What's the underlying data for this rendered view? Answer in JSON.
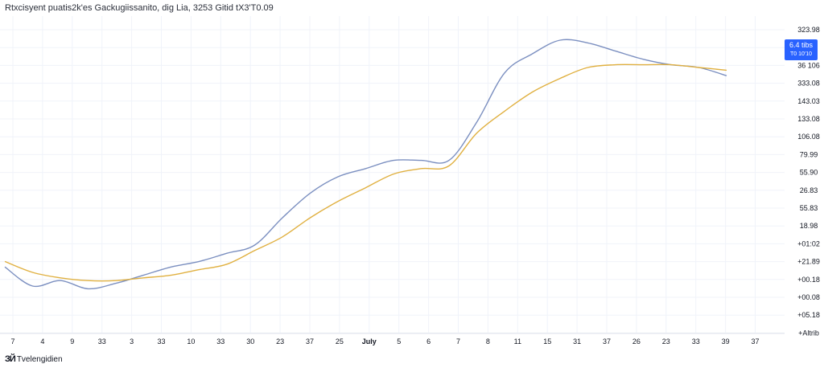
{
  "legend": {
    "text": "Rtxcisyent puatis2k'es Gackugiissanito, dig Lia, 3253 Gitid tX3'T0.09"
  },
  "watermark": {
    "logo": "ЗЙ",
    "text": "Tvelengidien"
  },
  "price_badge": {
    "value": "6.4 tibs",
    "sub": "T0 10'10"
  },
  "colors": {
    "series_1": "#7b8fc0",
    "series_2": "#e0b040",
    "grid": "#f0f3fa",
    "badge": "#2962ff"
  },
  "chart_data": {
    "type": "line",
    "title": "",
    "y_tick_labels": [
      "323.98",
      "6.4 tibs",
      "36 106",
      "333.08",
      "143.03",
      "133.08",
      "106.08",
      "79.99",
      "55.90",
      "26.83",
      "55.83",
      "18.98",
      "+01:02",
      "+21.89",
      "+00.18",
      "+00.08",
      "+05.18",
      "+Altrib"
    ],
    "x_tick_labels": [
      "7",
      "4",
      "9",
      "33",
      "3",
      "33",
      "10",
      "33",
      "30",
      "23",
      "37",
      "25",
      "July",
      "5",
      "6",
      "7",
      "8",
      "11",
      "15",
      "31",
      "37",
      "26",
      "23",
      "33",
      "39",
      "37"
    ],
    "x": [
      0,
      1,
      2,
      3,
      4,
      5,
      6,
      7,
      8,
      9,
      10,
      11,
      12,
      13,
      14,
      15,
      16,
      17,
      18,
      19,
      20,
      21,
      22,
      23,
      24,
      25,
      26
    ],
    "ylim": [
      0,
      100
    ],
    "series": [
      {
        "values": [
          17,
          10,
          12,
          9,
          11,
          14,
          17,
          19,
          22,
          25,
          35,
          44,
          50,
          53,
          56,
          56,
          56,
          70,
          88,
          95,
          100,
          99,
          96,
          93,
          91,
          90,
          87
        ]
      },
      {
        "values": [
          19,
          15,
          13,
          12,
          12,
          13,
          14,
          16,
          18,
          23,
          28,
          35,
          41,
          46,
          51,
          53,
          54,
          66,
          74,
          81,
          86,
          90,
          91,
          91,
          91,
          90,
          89
        ]
      }
    ]
  }
}
